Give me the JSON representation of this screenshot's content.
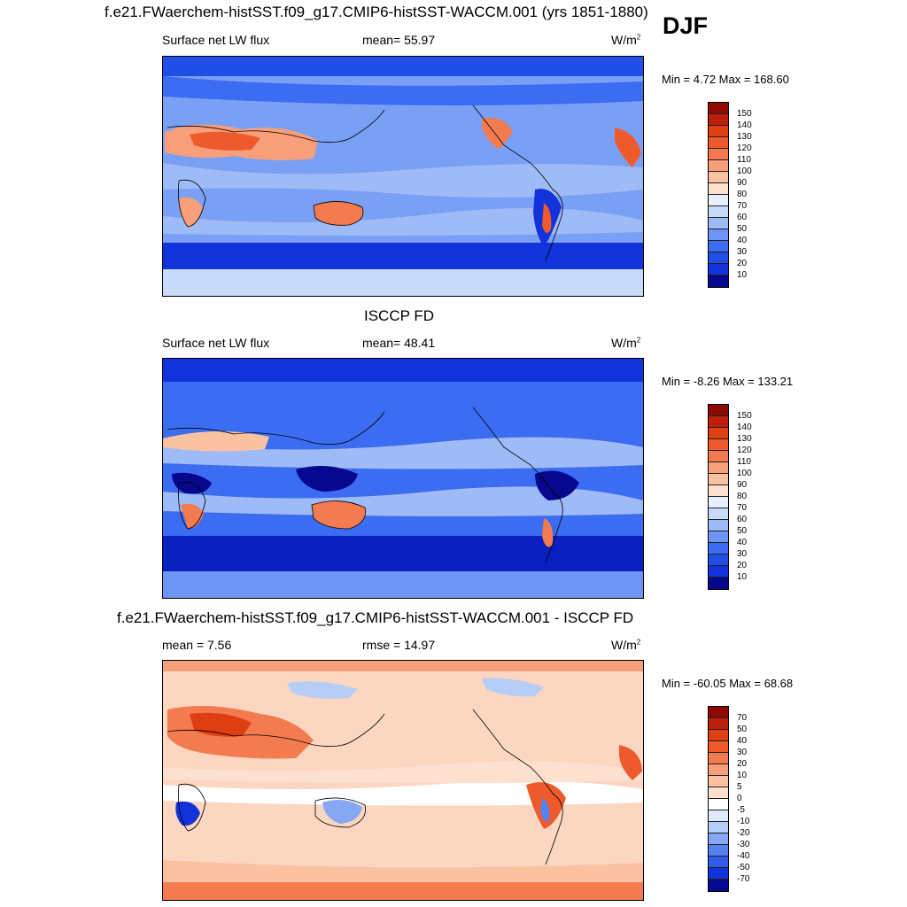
{
  "season": "DJF",
  "colors": {
    "abs_scale": [
      "#08088f",
      "#0a1fbf",
      "#1233d9",
      "#1f4fe6",
      "#3b6cf2",
      "#6d95f5",
      "#9ebaf7",
      "#c9dbfa",
      "#e8eefc",
      "#fde0cf",
      "#fbc2a2",
      "#f79e7a",
      "#f47a50",
      "#ef5a2c",
      "#df3d12",
      "#bc1f0a",
      "#8f0a05"
    ],
    "diff_scale": [
      "#08088f",
      "#0a1fbf",
      "#1233d9",
      "#2f5ce8",
      "#5582f0",
      "#86a8f4",
      "#b6cdf8",
      "#dfe8fc",
      "#ffffff",
      "#fde0cf",
      "#fbc2a2",
      "#f79e7a",
      "#f47a50",
      "#ef5a2c",
      "#df3d12",
      "#bc1f0a",
      "#8f0a05"
    ]
  },
  "panels": [
    {
      "title": "f.e21.FWaerchem-histSST.f09_g17.CMIP6-histSST-WACCM.001 (yrs 1851-1880)",
      "left_label": "Surface net LW flux",
      "center_label": "mean=  55.97",
      "units": "W/m",
      "units_sup": "2",
      "minmax": "Min =   4.72 Max = 168.60",
      "levels": [
        "150",
        "140",
        "130",
        "120",
        "110",
        "100",
        "90",
        "80",
        "70",
        "60",
        "50",
        "40",
        "30",
        "20",
        "10"
      ],
      "base_color": "#7aa0f5"
    },
    {
      "title": "ISCCP FD",
      "left_label": "Surface net LW flux",
      "center_label": "mean=  48.41",
      "units": "W/m",
      "units_sup": "2",
      "minmax": "Min =  -8.26 Max = 133.21",
      "levels": [
        "150",
        "140",
        "130",
        "120",
        "110",
        "100",
        "90",
        "80",
        "70",
        "60",
        "50",
        "40",
        "30",
        "20",
        "10"
      ],
      "base_color": "#3b6cf2"
    },
    {
      "title": "f.e21.FWaerchem-histSST.f09_g17.CMIP6-histSST-WACCM.001 - ISCCP FD",
      "left_label": "mean =   7.56",
      "center_label": "rmse =  14.97",
      "units": "W/m",
      "units_sup": "2",
      "minmax": "Min = -60.05 Max =  68.68",
      "levels": [
        "70",
        "50",
        "40",
        "30",
        "20",
        "10",
        "5",
        "0",
        "-5",
        "-10",
        "-20",
        "-30",
        "-40",
        "-50",
        "-70"
      ],
      "base_color": "#fbd6c0"
    }
  ]
}
